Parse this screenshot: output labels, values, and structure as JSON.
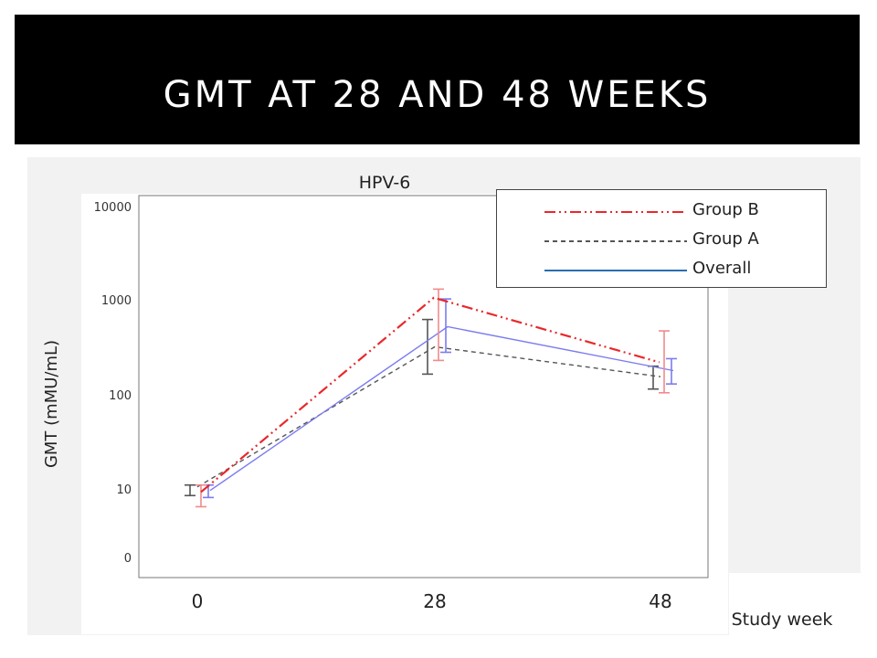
{
  "slide": {
    "title": "GMT AT 28 AND 48 WEEKS"
  },
  "chart_data": {
    "type": "line",
    "title": "HPV-6",
    "xlabel": "Study week",
    "ylabel": "GMT (mMU/mL)",
    "y_scale": "log",
    "y_ticks": [
      "0",
      "10",
      "100",
      "1000",
      "10000"
    ],
    "x_ticks": [
      "0",
      "28",
      "48"
    ],
    "categories": [
      "0",
      "28",
      "48"
    ],
    "legend_position": "top-right",
    "grid": false,
    "series": [
      {
        "name": "Group B",
        "color": "#e8282b",
        "style": "dash-dot-dot",
        "values": [
          9,
          1050,
          220
        ],
        "error_low": [
          5.5,
          230,
          105
        ],
        "error_high": [
          11,
          1300,
          470
        ]
      },
      {
        "name": "Group A",
        "color": "#555555",
        "style": "dashed",
        "values": [
          10.5,
          320,
          155
        ],
        "error_low": [
          8,
          165,
          115
        ],
        "error_high": [
          11,
          620,
          200
        ]
      },
      {
        "name": "Overall",
        "color": "#7b7bf0",
        "legend_color": "#2a6db0",
        "style": "solid",
        "values": [
          9.5,
          520,
          180
        ],
        "error_low": [
          7.5,
          280,
          130
        ],
        "error_high": [
          11,
          1020,
          240
        ]
      }
    ]
  }
}
